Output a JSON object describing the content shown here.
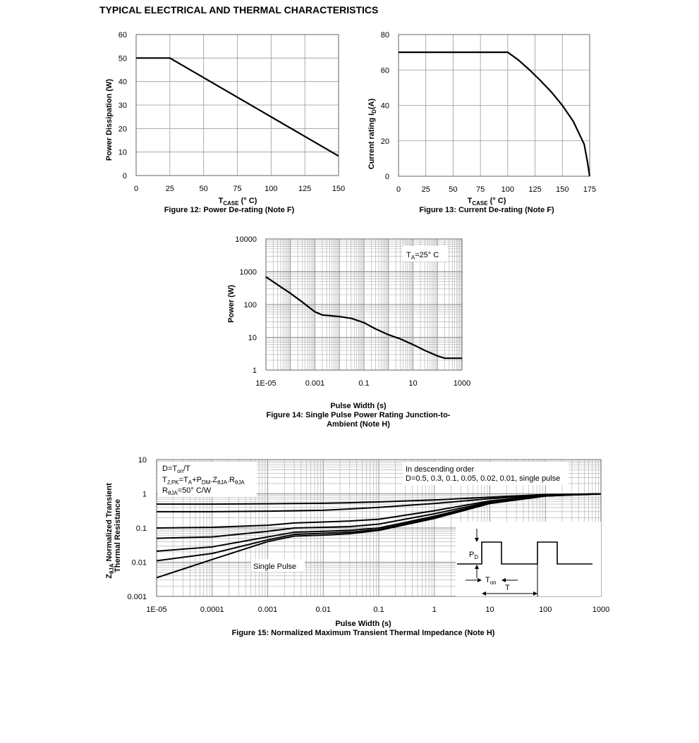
{
  "page": {
    "title": "TYPICAL ELECTRICAL AND THERMAL CHARACTERISTICS"
  },
  "chart_data": [
    {
      "id": "fig12",
      "type": "line",
      "caption": "Figure 12: Power De-rating (Note F)",
      "ylabel": "Power Dissipation (W)",
      "xlabel_main": "T",
      "xlabel_sub": "CASE",
      "xlabel_tail": " (° C)",
      "xlim": [
        0,
        150
      ],
      "ylim": [
        0,
        60
      ],
      "xticks": [
        0,
        25,
        50,
        75,
        100,
        125,
        150
      ],
      "yticks": [
        0,
        10,
        20,
        30,
        40,
        50,
        60
      ],
      "grid": true,
      "x": [
        0,
        25,
        150
      ],
      "y": [
        50,
        50,
        8.3
      ]
    },
    {
      "id": "fig13",
      "type": "line",
      "caption": "Figure 13: Current De-rating (Note F)",
      "ylabel_main": "Current rating I",
      "ylabel_sub": "D",
      "ylabel_tail": "(A)",
      "xlabel_main": "T",
      "xlabel_sub": "CASE",
      "xlabel_tail": " (° C)",
      "xlim": [
        0,
        175
      ],
      "ylim": [
        0,
        80
      ],
      "xticks": [
        0,
        25,
        50,
        75,
        100,
        125,
        150,
        175
      ],
      "yticks": [
        0,
        20,
        40,
        60,
        80
      ],
      "grid": true,
      "x": [
        0,
        100,
        110,
        120,
        130,
        140,
        150,
        160,
        170,
        173,
        175
      ],
      "y": [
        70,
        70,
        65.5,
        60,
        54,
        47.5,
        40,
        31,
        18,
        8,
        0
      ]
    },
    {
      "id": "fig14",
      "type": "line",
      "caption_lines": [
        "Figure 14: Single Pulse Power Rating Junction-to-",
        "Ambient (Note H)"
      ],
      "ylabel": "Power (W)",
      "xlabel": "Pulse Width (s)",
      "xscale": "log",
      "yscale": "log",
      "xlim": [
        1e-05,
        1000
      ],
      "ylim": [
        1,
        10000
      ],
      "xticks": [
        1e-05,
        0.001,
        0.1,
        10,
        1000
      ],
      "xtick_labels": [
        "1E-05",
        "0.001",
        "0.1",
        "10",
        "1000"
      ],
      "yticks": [
        1,
        10,
        100,
        1000,
        10000
      ],
      "ytick_labels": [
        "1",
        "10",
        "100",
        "1000",
        "10000"
      ],
      "grid": true,
      "annotation": {
        "main": "T",
        "sub": "A",
        "tail": "=25° C"
      },
      "x": [
        1e-05,
        3e-05,
        0.0001,
        0.0003,
        0.001,
        0.002,
        0.005,
        0.01,
        0.03,
        0.1,
        0.3,
        1,
        3,
        10,
        30,
        100,
        200,
        400,
        1000
      ],
      "y": [
        700,
        400,
        220,
        120,
        60,
        48,
        45,
        43,
        38,
        28,
        18,
        12,
        9,
        6,
        4,
        2.7,
        2.3,
        2.3,
        2.3
      ]
    },
    {
      "id": "fig15",
      "type": "line",
      "caption": "Figure 15: Normalized Maximum Transient Thermal Impedance (Note H)",
      "ylabel_line1": "Normalized Transient",
      "ylabel_line2": "Thermal Resistance",
      "ylabel_prefix": "Z",
      "ylabel_prefix_sub": "θJA",
      "xlabel": "Pulse Width (s)",
      "xscale": "log",
      "yscale": "log",
      "xlim": [
        1e-05,
        1000
      ],
      "ylim": [
        0.001,
        10
      ],
      "xticks": [
        1e-05,
        0.0001,
        0.001,
        0.01,
        0.1,
        1,
        10,
        100,
        1000
      ],
      "xtick_labels": [
        "1E-05",
        "0.0001",
        "0.001",
        "0.01",
        "0.1",
        "1",
        "10",
        "100",
        "1000"
      ],
      "yticks": [
        0.001,
        0.01,
        0.1,
        1,
        10
      ],
      "ytick_labels": [
        "0.001",
        "0.01",
        "0.1",
        "1",
        "10"
      ],
      "grid": true,
      "legend_box": {
        "l1": "D=T",
        "l1_sub": "on",
        "l1_tail": "/T",
        "l2_a": "T",
        "l2_a_sub": "J,PK",
        "l2_b": "=T",
        "l2_b_sub": "A",
        "l2_c": "+P",
        "l2_c_sub": "DM",
        "l2_d": ".Z",
        "l2_d_sub": "θJA",
        "l2_e": ".R",
        "l2_e_sub": "θJA",
        "l3_a": "R",
        "l3_a_sub": "θJA",
        "l3_tail": "=50° C/W"
      },
      "order_note_1": "In descending order",
      "order_note_2": "D=0.5, 0.3, 0.1, 0.05, 0.02, 0.01, single pulse",
      "single_pulse_label": "Single Pulse",
      "inset": {
        "pd": "P",
        "pd_sub": "D",
        "ton": "T",
        "ton_sub": "on",
        "t": "T"
      },
      "x": [
        1e-05,
        0.0001,
        0.001,
        0.003,
        0.01,
        0.03,
        0.1,
        1,
        10,
        100,
        1000
      ],
      "series": [
        {
          "name": "D=0.5",
          "values": [
            0.5,
            0.5,
            0.51,
            0.52,
            0.53,
            0.55,
            0.58,
            0.66,
            0.8,
            0.95,
            1.0
          ]
        },
        {
          "name": "D=0.3",
          "values": [
            0.3,
            0.3,
            0.31,
            0.32,
            0.33,
            0.36,
            0.4,
            0.52,
            0.72,
            0.92,
            1.0
          ]
        },
        {
          "name": "D=0.1",
          "values": [
            0.1,
            0.105,
            0.12,
            0.14,
            0.15,
            0.16,
            0.18,
            0.32,
            0.62,
            0.9,
            1.0
          ]
        },
        {
          "name": "D=0.05",
          "values": [
            0.05,
            0.055,
            0.08,
            0.1,
            0.105,
            0.11,
            0.13,
            0.26,
            0.58,
            0.88,
            1.0
          ]
        },
        {
          "name": "D=0.02",
          "values": [
            0.021,
            0.028,
            0.055,
            0.075,
            0.08,
            0.085,
            0.1,
            0.22,
            0.55,
            0.87,
            1.0
          ]
        },
        {
          "name": "D=0.01",
          "values": [
            0.011,
            0.018,
            0.045,
            0.065,
            0.07,
            0.075,
            0.09,
            0.2,
            0.53,
            0.86,
            1.0
          ]
        },
        {
          "name": "single pulse",
          "values": [
            0.0035,
            0.012,
            0.04,
            0.058,
            0.062,
            0.068,
            0.085,
            0.19,
            0.52,
            0.86,
            1.0
          ]
        }
      ]
    }
  ]
}
